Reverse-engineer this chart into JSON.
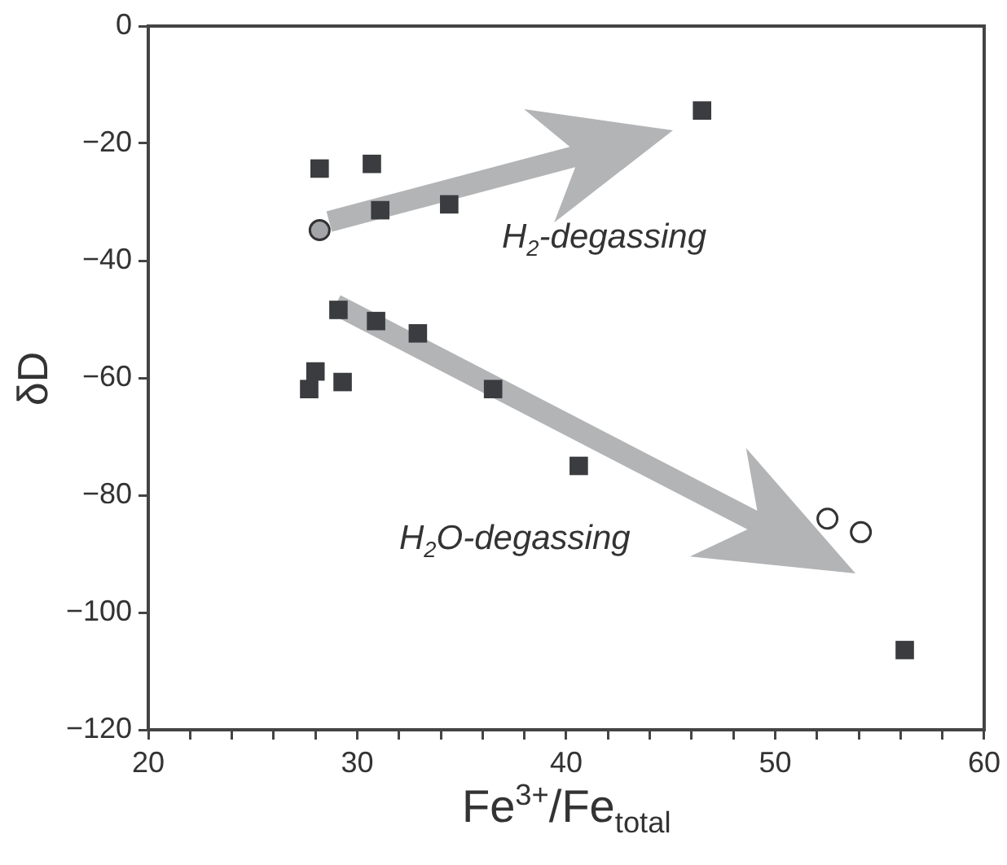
{
  "chart_data": {
    "type": "scatter",
    "xlabel": "Fe$^{3+}$/Fe$_{total}$",
    "ylabel": "δD",
    "xlim": [
      20,
      60
    ],
    "ylim": [
      -120,
      0
    ],
    "xticks": [
      20,
      {
        "value": 22,
        "label": null
      },
      {
        "value": 24,
        "label": null
      },
      {
        "value": 26,
        "label": null
      },
      {
        "value": 28,
        "label": null
      },
      30,
      {
        "value": 32,
        "label": null
      },
      {
        "value": 34,
        "label": null
      },
      {
        "value": 36,
        "label": null
      },
      {
        "value": 38,
        "label": null
      },
      40,
      {
        "value": 42,
        "label": null
      },
      {
        "value": 44,
        "label": null
      },
      {
        "value": 46,
        "label": null
      },
      {
        "value": 48,
        "label": null
      },
      50,
      {
        "value": 52,
        "label": null
      },
      {
        "value": 54,
        "label": null
      },
      {
        "value": 56,
        "label": null
      },
      {
        "value": 58,
        "label": null
      },
      60
    ],
    "yticks": [
      0,
      {
        "value": -20,
        "label": "−20"
      },
      {
        "value": -40,
        "label": "−40"
      },
      {
        "value": -60,
        "label": "−60"
      },
      {
        "value": -80,
        "label": "−80"
      },
      {
        "value": -100,
        "label": "−100"
      },
      {
        "value": -120,
        "label": "−120"
      }
    ],
    "grid": false,
    "legend": false,
    "series": [
      {
        "color": "#3a3c3f",
        "marker": "square",
        "x": [
          28.2,
          30.7,
          31.1,
          34.4,
          29.1,
          30.9,
          32.9,
          28.0,
          27.7,
          29.3,
          36.5,
          40.6,
          46.5,
          56.2
        ],
        "values": [
          -24.3,
          -23.5,
          -31.4,
          -30.4,
          -48.4,
          -50.3,
          -52.4,
          -58.9,
          -61.9,
          -60.7,
          -61.9,
          -75.0,
          -14.4,
          -106.4
        ]
      },
      {
        "color": "#a3a5a8",
        "marker": "circle",
        "x": [
          28.2
        ],
        "values": [
          -34.8
        ]
      },
      {
        "color": "#ffffff",
        "marker": "circle",
        "x": [
          52.5,
          54.1
        ],
        "values": [
          -84.0,
          -86.3
        ]
      }
    ],
    "annotations": [
      "H$_{2}$-degassing",
      "H$_{2}$O-degassing"
    ]
  }
}
